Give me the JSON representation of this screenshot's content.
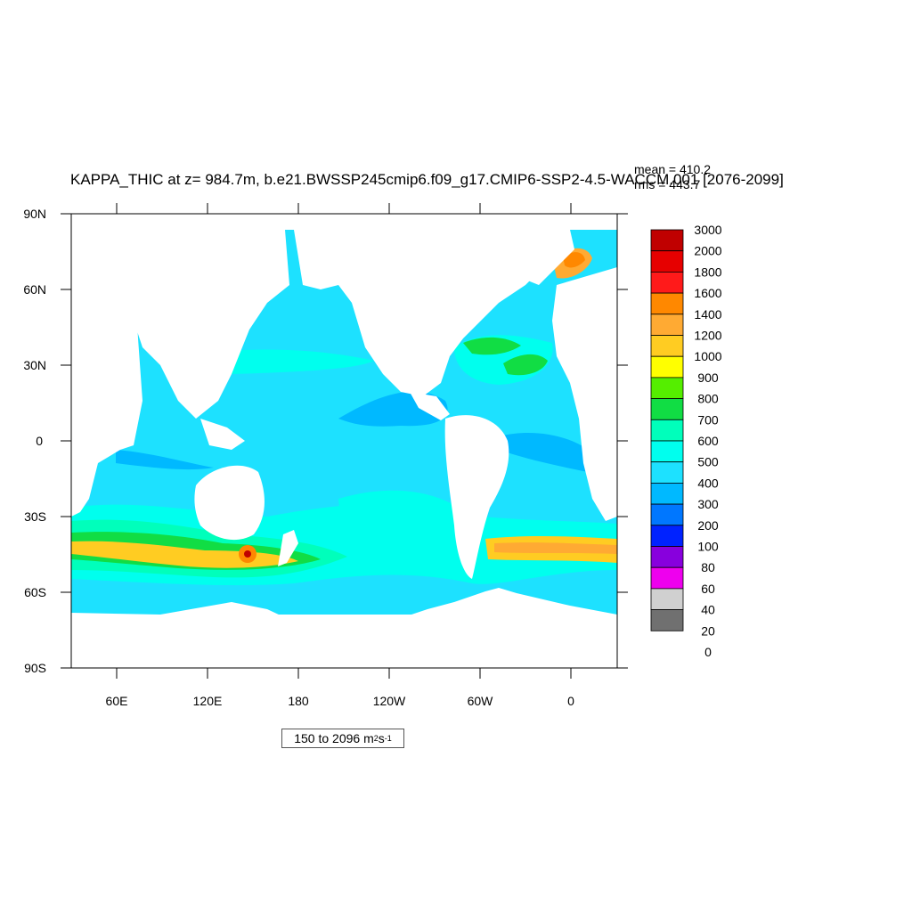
{
  "title": "KAPPA_THIC at z= 984.7m, b.e21.BWSSP245cmip6.f09_g17.CMIP6-SSP2-4.5-WACCM.001 [2076-2099]",
  "stats": {
    "mean": "mean = 410.2",
    "rms": "rms = 443.7"
  },
  "range": {
    "text": "150 to 2096 m",
    "unit_sup1": "2",
    "unit_mid": " s",
    "unit_sup2": "-1"
  },
  "axes": {
    "lat_ticks": [
      "90N",
      "60N",
      "30N",
      "0",
      "30S",
      "60S",
      "90S"
    ],
    "lon_ticks": [
      "60E",
      "120E",
      "180",
      "120W",
      "60W",
      "0"
    ]
  },
  "colorbar": {
    "levels": [
      "3000",
      "2000",
      "1800",
      "1600",
      "1400",
      "1200",
      "1000",
      "900",
      "800",
      "700",
      "600",
      "500",
      "400",
      "300",
      "200",
      "100",
      "80",
      "60",
      "40",
      "20",
      "0"
    ],
    "colors": [
      "#c00000",
      "#e60000",
      "#ff1a1a",
      "#ff8800",
      "#ffaa33",
      "#ffcc22",
      "#ffff00",
      "#55ee00",
      "#11dd44",
      "#00ffbb",
      "#00ffee",
      "#1de1ff",
      "#00b9ff",
      "#0077ff",
      "#0022ff",
      "#8800dd",
      "#ee00ee",
      "#d0d0d0",
      "#707070"
    ]
  },
  "colors": {
    "ocean_base": "#1de1ff",
    "ocean_low": "#00b9ff",
    "ocean_mid": "#00ffee",
    "ocean_high": "#00ffbb",
    "land": "#ffffff"
  }
}
